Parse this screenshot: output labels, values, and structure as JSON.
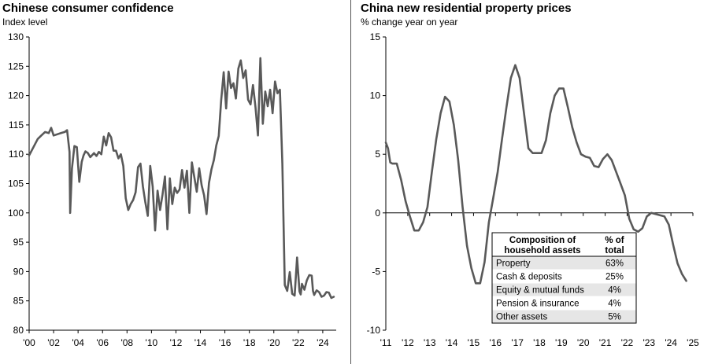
{
  "left": {
    "title": "Chinese consumer confidence",
    "subtitle": "Index level",
    "chart_data": {
      "type": "line",
      "title": "Chinese consumer confidence",
      "ylabel": "Index level",
      "ylim": [
        80,
        130
      ],
      "yticks": [
        80,
        85,
        90,
        95,
        100,
        105,
        110,
        115,
        120,
        125,
        130
      ],
      "xlim": [
        2000,
        2025.1
      ],
      "xticks": [
        {
          "v": 2000,
          "label": "'00"
        },
        {
          "v": 2002,
          "label": "'02"
        },
        {
          "v": 2004,
          "label": "'04"
        },
        {
          "v": 2006,
          "label": "'06"
        },
        {
          "v": 2008,
          "label": "'08"
        },
        {
          "v": 2010,
          "label": "'10"
        },
        {
          "v": 2012,
          "label": "'12"
        },
        {
          "v": 2014,
          "label": "'14"
        },
        {
          "v": 2016,
          "label": "'16"
        },
        {
          "v": 2018,
          "label": "'18"
        },
        {
          "v": 2020,
          "label": "'20"
        },
        {
          "v": 2022,
          "label": "'22"
        },
        {
          "v": 2024,
          "label": "'24"
        }
      ],
      "color": "#595959",
      "series": [
        {
          "x": [
            2000,
            2000.3,
            2000.7,
            2001,
            2001.3,
            2001.6,
            2001.8,
            2002,
            2002.3,
            2002.6,
            2002.9,
            2003.1,
            2003.3,
            2003.35,
            2003.5,
            2003.7,
            2003.9,
            2004.1,
            2004.3,
            2004.45,
            2004.6,
            2004.8,
            2005,
            2005.3,
            2005.5,
            2005.7,
            2005.9,
            2006.1,
            2006.3,
            2006.5,
            2006.7,
            2006.9,
            2007.1,
            2007.3,
            2007.5,
            2007.7,
            2007.9,
            2008.1,
            2008.3,
            2008.5,
            2008.7,
            2008.9,
            2009.1,
            2009.3,
            2009.5,
            2009.7,
            2009.9,
            2010.1,
            2010.3,
            2010.5,
            2010.7,
            2010.9,
            2011.1,
            2011.3,
            2011.5,
            2011.7,
            2011.9,
            2012.1,
            2012.3,
            2012.5,
            2012.7,
            2012.9,
            2013.1,
            2013.3,
            2013.5,
            2013.7,
            2013.9,
            2014.1,
            2014.3,
            2014.5,
            2014.7,
            2014.9,
            2015.1,
            2015.3,
            2015.5,
            2015.7,
            2015.9,
            2016.1,
            2016.3,
            2016.5,
            2016.7,
            2016.9,
            2017.1,
            2017.3,
            2017.5,
            2017.7,
            2017.9,
            2018.1,
            2018.3,
            2018.5,
            2018.7,
            2018.9,
            2019.1,
            2019.3,
            2019.5,
            2019.7,
            2019.9,
            2020.1,
            2020.3,
            2020.5,
            2020.7,
            2020.9,
            2021.1,
            2021.3,
            2021.5,
            2021.7,
            2021.9,
            2022.1,
            2022.2,
            2022.3,
            2022.5,
            2022.7,
            2022.9,
            2023.1,
            2023.2,
            2023.3,
            2023.5,
            2023.7,
            2023.9,
            2024.1,
            2024.3,
            2024.5,
            2024.7,
            2024.9
          ],
          "y": [
            109.8,
            111,
            112.6,
            113.2,
            113.8,
            113.6,
            114.5,
            113.2,
            113.4,
            113.6,
            113.8,
            114.1,
            110.4,
            100,
            107.6,
            111.4,
            111.2,
            105.3,
            108.7,
            109.8,
            110.5,
            110.2,
            109.5,
            110.2,
            109.7,
            110.4,
            110,
            113,
            111.5,
            113.6,
            112.9,
            110.6,
            110.6,
            109.3,
            110,
            108,
            102.5,
            100.5,
            101.5,
            102.2,
            103.5,
            107.8,
            108.4,
            104.5,
            101.8,
            99.5,
            108,
            104.5,
            97,
            103.8,
            100.5,
            103.1,
            106.2,
            97.2,
            105.9,
            101.5,
            104.3,
            103.4,
            104,
            107.3,
            104.3,
            107.2,
            100,
            108.6,
            106.1,
            103.6,
            107.6,
            104.7,
            103,
            99.8,
            105.1,
            107.4,
            109,
            111.5,
            113.1,
            119.2,
            124,
            117.8,
            124.1,
            121.3,
            122.1,
            119.5,
            124.6,
            126,
            123,
            124.3,
            119.3,
            118.5,
            121.8,
            118,
            113.2,
            126.4,
            115.2,
            120.7,
            118.2,
            121,
            117,
            122.4,
            120.4,
            121,
            108.4,
            87.7,
            86.7,
            89.9,
            86.2,
            85.9,
            92.4,
            86.6,
            86.1,
            87.9,
            86.9,
            88.5,
            89.4,
            89.3,
            86.7,
            86,
            86.8,
            86.5,
            85.7,
            85.9,
            86.5,
            86.4,
            85.5,
            85.7
          ]
        }
      ]
    }
  },
  "right": {
    "title": "China new residential property prices",
    "subtitle": "% change year on year",
    "chart_data": {
      "type": "line",
      "title": "China new residential property prices",
      "ylabel": "% change year on year",
      "ylim": [
        -10,
        15
      ],
      "yticks": [
        -10,
        -5,
        0,
        5,
        10,
        15
      ],
      "xlim": [
        2011,
        2025
      ],
      "xticks": [
        {
          "v": 2011,
          "label": "'11"
        },
        {
          "v": 2012,
          "label": "'12"
        },
        {
          "v": 2013,
          "label": "'13"
        },
        {
          "v": 2014,
          "label": "'14"
        },
        {
          "v": 2015,
          "label": "'15"
        },
        {
          "v": 2016,
          "label": "'16"
        },
        {
          "v": 2017,
          "label": "'17"
        },
        {
          "v": 2018,
          "label": "'18"
        },
        {
          "v": 2019,
          "label": "'19"
        },
        {
          "v": 2020,
          "label": "'20"
        },
        {
          "v": 2021,
          "label": "'21"
        },
        {
          "v": 2022,
          "label": "'22"
        },
        {
          "v": 2023,
          "label": "'23"
        },
        {
          "v": 2024,
          "label": "'24"
        },
        {
          "v": 2025,
          "label": "'25"
        }
      ],
      "color": "#595959",
      "series": [
        {
          "x": [
            2011,
            2011.1,
            2011.2,
            2011.3,
            2011.5,
            2011.7,
            2011.9,
            2012.1,
            2012.3,
            2012.5,
            2012.7,
            2012.9,
            2013.1,
            2013.3,
            2013.5,
            2013.7,
            2013.9,
            2014.1,
            2014.3,
            2014.5,
            2014.7,
            2014.9,
            2015.1,
            2015.3,
            2015.5,
            2015.7,
            2015.9,
            2016.1,
            2016.3,
            2016.5,
            2016.7,
            2016.9,
            2017.1,
            2017.3,
            2017.5,
            2017.7,
            2017.9,
            2018.1,
            2018.3,
            2018.5,
            2018.7,
            2018.9,
            2019.1,
            2019.3,
            2019.5,
            2019.7,
            2019.9,
            2020.1,
            2020.3,
            2020.5,
            2020.7,
            2020.9,
            2021.1,
            2021.3,
            2021.5,
            2021.7,
            2021.9,
            2022.1,
            2022.3,
            2022.5,
            2022.7,
            2022.9,
            2023.1,
            2023.3,
            2023.5,
            2023.7,
            2023.9,
            2024.1,
            2024.3,
            2024.5,
            2024.7
          ],
          "y": [
            6,
            5.5,
            4.3,
            4.2,
            4.2,
            2.8,
            1,
            -0.3,
            -1.5,
            -1.5,
            -0.8,
            0.5,
            3.5,
            6.3,
            8.5,
            9.9,
            9.5,
            7.5,
            4.5,
            0.5,
            -2.8,
            -4.7,
            -6,
            -6,
            -4.2,
            -0.8,
            1.3,
            3.5,
            6.3,
            9,
            11.5,
            12.6,
            11.5,
            8.5,
            5.5,
            5.1,
            5.1,
            5.1,
            6.2,
            8.5,
            10,
            10.6,
            10.6,
            9,
            7.3,
            6,
            5,
            4.8,
            4.7,
            4,
            3.9,
            4.6,
            5,
            4.5,
            3.5,
            2.5,
            1.5,
            -0.5,
            -1.4,
            -1.6,
            -1.3,
            -0.3,
            0,
            -0.1,
            -0.2,
            -0.3,
            -1,
            -2.7,
            -4.3,
            -5.2,
            -5.8
          ]
        }
      ]
    },
    "inset_table": {
      "headers": [
        "Composition of household assets",
        "% of total"
      ],
      "rows": [
        {
          "label": "Property",
          "value": "63%"
        },
        {
          "label": "Cash & deposits",
          "value": "25%"
        },
        {
          "label": "Equity & mutual funds",
          "value": "4%"
        },
        {
          "label": "Pension & insurance",
          "value": "4%"
        },
        {
          "label": "Other assets",
          "value": "5%"
        }
      ]
    }
  }
}
